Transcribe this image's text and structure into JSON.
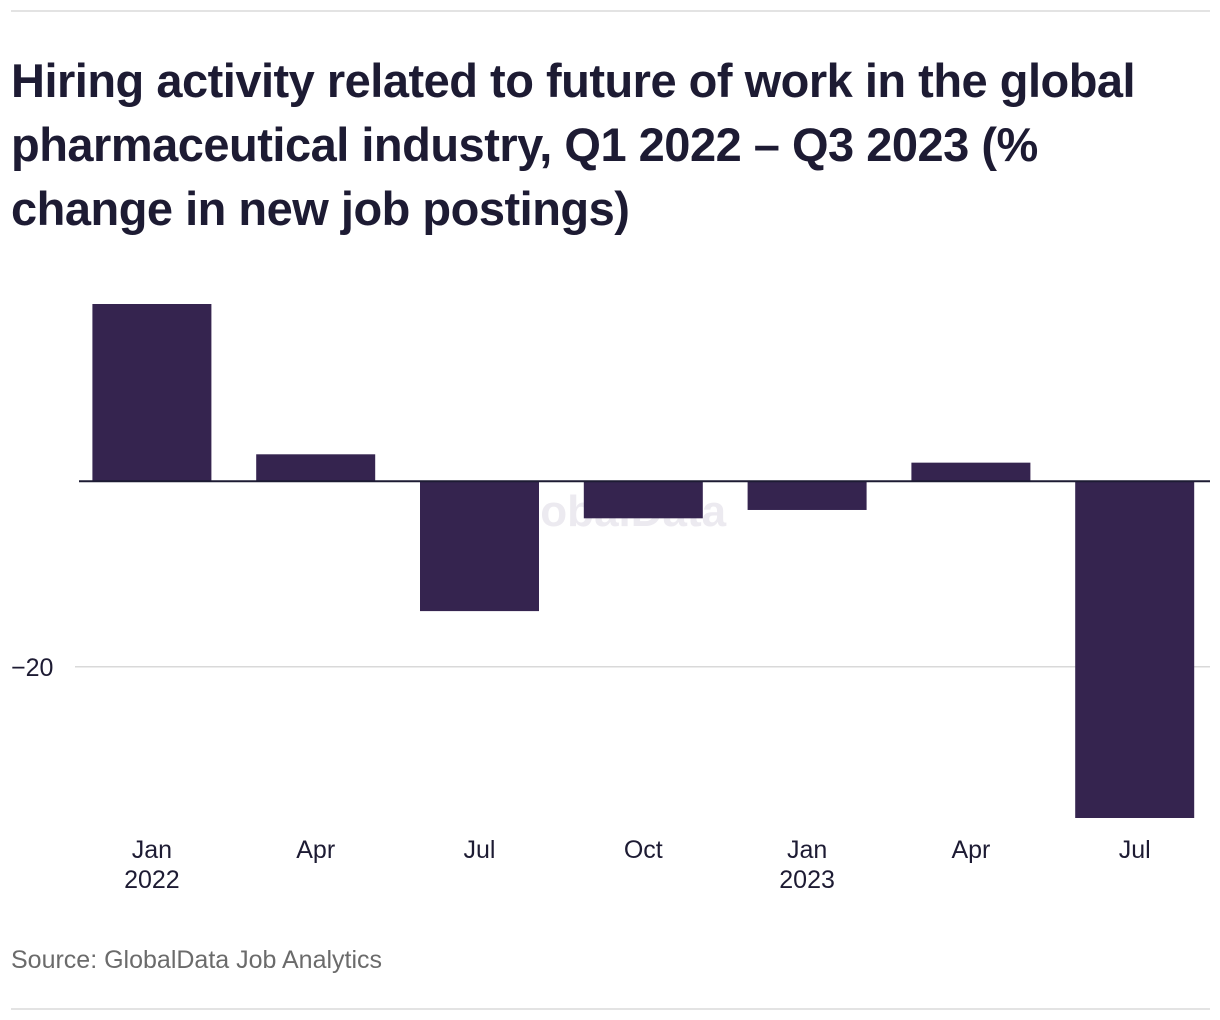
{
  "title": "Hiring activity related to future of work in the global pharmaceutical industry, Q1 2022 – Q3 2023 (% change in new job postings)",
  "source": "Source: GlobalData Job Analytics",
  "watermark": "GlobalData",
  "chart_data": {
    "type": "bar",
    "title": "Hiring activity related to future of work in the global pharmaceutical industry, Q1 2022 – Q3 2023 (% change in new job postings)",
    "xlabel": "",
    "ylabel": "",
    "categories": [
      "Jan 2022",
      "Apr 2022",
      "Jul 2022",
      "Oct 2022",
      "Jan 2023",
      "Apr 2023",
      "Jul 2023"
    ],
    "x_tick_labels": [
      [
        "Jan",
        "2022"
      ],
      [
        "Apr",
        ""
      ],
      [
        "Jul",
        ""
      ],
      [
        "Oct",
        ""
      ],
      [
        "Jan",
        "2023"
      ],
      [
        "Apr",
        ""
      ],
      [
        "Jul",
        ""
      ]
    ],
    "values": [
      19.1,
      2.9,
      -14.0,
      -4.0,
      -3.1,
      2.0,
      -36.3
    ],
    "y_ticks": [
      -20
    ],
    "y_tick_labels": [
      "−20"
    ],
    "ylim": [
      -36.3,
      19.1
    ],
    "grid": "horizontal",
    "legend": "none",
    "colors": {
      "bar": "#35244f",
      "zero_line": "#1d1b33",
      "grid": "#d9d9d9",
      "tick_text": "#1d1b33",
      "watermark": "#eceaf0"
    }
  }
}
